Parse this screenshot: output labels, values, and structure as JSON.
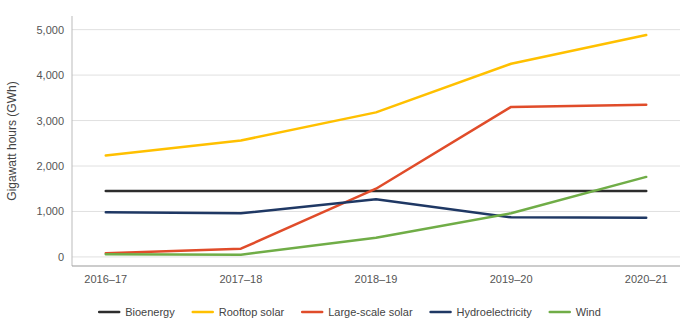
{
  "chart_data": {
    "type": "line",
    "y_label": "Gigawatt hours (GWh)",
    "categories": [
      "2016–17",
      "2017–18",
      "2018–19",
      "2019–20",
      "2020–21"
    ],
    "series": [
      {
        "name": "Bioenergy",
        "color": "#2d2d2d",
        "values": [
          1450,
          1450,
          1450,
          1450,
          1450
        ]
      },
      {
        "name": "Rooftop solar",
        "color": "#FFC000",
        "values": [
          2230,
          2560,
          3180,
          4250,
          4880
        ]
      },
      {
        "name": "Large-scale solar",
        "color": "#E04C2A",
        "values": [
          80,
          180,
          1500,
          3300,
          3350
        ]
      },
      {
        "name": "Hydroelectricity",
        "color": "#1F3864",
        "values": [
          980,
          960,
          1270,
          870,
          860
        ]
      },
      {
        "name": "Wind",
        "color": "#70AD47",
        "values": [
          60,
          50,
          420,
          960,
          1760
        ]
      }
    ],
    "ylim": [
      -200,
      5300
    ],
    "yticks": [
      0,
      {
        "value": 1000,
        "label": "1,000"
      },
      {
        "value": 2000,
        "label": "2,000"
      },
      {
        "value": 3000,
        "label": "3,000"
      },
      {
        "value": 4000,
        "label": "4,000"
      },
      {
        "value": 5000,
        "label": "5,000"
      }
    ],
    "grid": true,
    "legend": "bottom"
  }
}
